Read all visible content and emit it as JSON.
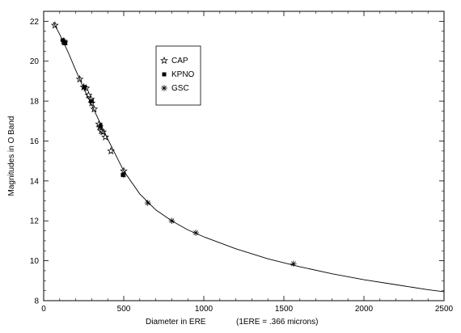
{
  "chart_data": {
    "type": "scatter",
    "title": "",
    "xlabel": "Diameter in ERE",
    "xlabel_note": "(1ERE = .366 microns)",
    "ylabel": "Magnitudes in O Band",
    "xlim": [
      0,
      2500
    ],
    "ylim": [
      8,
      22.5
    ],
    "xticks": [
      0,
      500,
      1000,
      1500,
      2000,
      2500
    ],
    "yticks": [
      8,
      10,
      12,
      14,
      16,
      18,
      20,
      22
    ],
    "grid": false,
    "legend_position": "top-left-inset",
    "legend": [
      {
        "label": "CAP",
        "marker": "star"
      },
      {
        "label": "KPNO",
        "marker": "square"
      },
      {
        "label": "GSC",
        "marker": "asterisk"
      }
    ],
    "series": [
      {
        "name": "CAP",
        "marker": "star",
        "points": [
          [
            70,
            21.8
          ],
          [
            125,
            21.0
          ],
          [
            130,
            20.95
          ],
          [
            225,
            19.1
          ],
          [
            250,
            18.7
          ],
          [
            265,
            18.65
          ],
          [
            280,
            18.3
          ],
          [
            295,
            18.1
          ],
          [
            300,
            17.9
          ],
          [
            315,
            17.6
          ],
          [
            345,
            16.85
          ],
          [
            350,
            16.7
          ],
          [
            360,
            16.5
          ],
          [
            370,
            16.45
          ],
          [
            385,
            16.2
          ],
          [
            420,
            15.5
          ],
          [
            500,
            14.5
          ]
        ]
      },
      {
        "name": "KPNO",
        "marker": "square",
        "points": [
          [
            120,
            21.05
          ],
          [
            135,
            20.9
          ],
          [
            255,
            18.7
          ],
          [
            300,
            18.0
          ],
          [
            355,
            16.75
          ],
          [
            495,
            14.3
          ]
        ]
      },
      {
        "name": "GSC",
        "marker": "asterisk",
        "points": [
          [
            500,
            14.3
          ],
          [
            650,
            12.9
          ],
          [
            800,
            12.0
          ],
          [
            950,
            11.4
          ],
          [
            1560,
            9.85
          ]
        ]
      }
    ],
    "fit_curve": {
      "name": "",
      "x": [
        60,
        100,
        150,
        200,
        250,
        300,
        350,
        400,
        450,
        500,
        600,
        700,
        800,
        900,
        1000,
        1200,
        1400,
        1600,
        1800,
        2000,
        2200,
        2400,
        2500
      ],
      "y": [
        21.95,
        21.35,
        20.5,
        19.55,
        18.65,
        17.8,
        16.95,
        16.1,
        15.3,
        14.5,
        13.35,
        12.55,
        12.0,
        11.55,
        11.2,
        10.6,
        10.1,
        9.7,
        9.35,
        9.05,
        8.8,
        8.55,
        8.45
      ]
    }
  }
}
